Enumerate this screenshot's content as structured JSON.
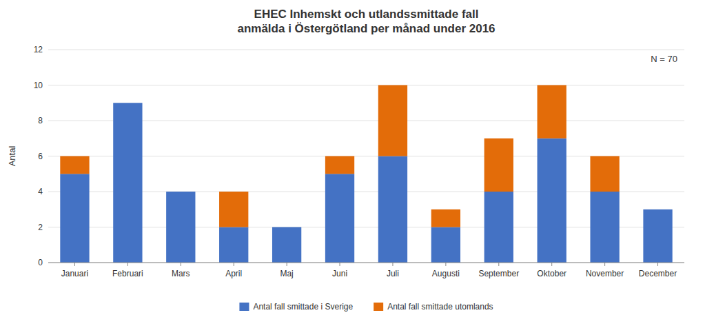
{
  "chart_data": {
    "type": "bar",
    "stacked": true,
    "title": "EHEC Inhemskt och utlandssmittade fall\nanmälda i Östergötland per månad under 2016",
    "ylabel": "Antal",
    "annotation": "N = 70",
    "categories": [
      "Januari",
      "Februari",
      "Mars",
      "April",
      "Maj",
      "Juni",
      "Juli",
      "Augusti",
      "September",
      "Oktober",
      "November",
      "December"
    ],
    "series": [
      {
        "name": "Antal fall smittade i Sverige",
        "color": "#4472C4",
        "values": [
          5,
          9,
          4,
          2,
          2,
          5,
          6,
          2,
          4,
          7,
          4,
          3
        ]
      },
      {
        "name": "Antal fall smittade utomlands",
        "color": "#E36C09",
        "values": [
          1,
          0,
          0,
          2,
          0,
          1,
          4,
          1,
          3,
          3,
          2,
          0
        ]
      }
    ],
    "ylim": [
      0,
      12
    ],
    "yticks": [
      0,
      2,
      4,
      6,
      8,
      10,
      12
    ],
    "grid": true,
    "legend": "bottom"
  }
}
